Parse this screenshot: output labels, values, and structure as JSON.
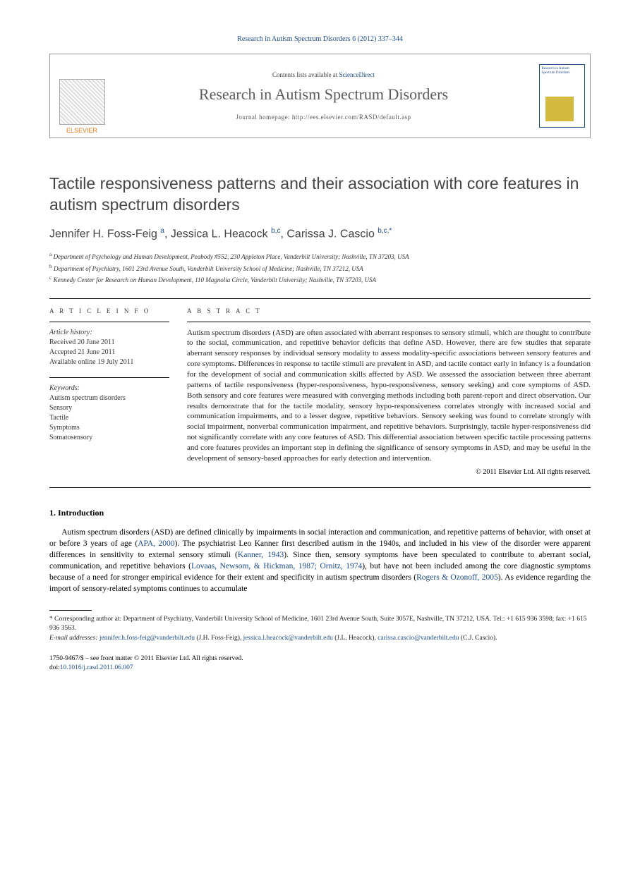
{
  "citation": "Research in Autism Spectrum Disorders 6 (2012) 337–344",
  "header": {
    "contents_prefix": "Contents lists available at ",
    "contents_link": "ScienceDirect",
    "journal": "Research in Autism Spectrum Disorders",
    "homepage_label": "Journal homepage: http://ees.elsevier.com/RASD/default.asp",
    "publisher": "ELSEVIER",
    "cover_title": "Research in Autism Spectrum Disorders"
  },
  "title": "Tactile responsiveness patterns and their association with core features in autism spectrum disorders",
  "authors_html": "Jennifer H. Foss-Feig <sup>a</sup>, Jessica L. Heacock <sup>b,c</sup>, Carissa J. Cascio <sup>b,c,*</sup>",
  "affiliations": [
    {
      "sup": "a",
      "text": "Department of Psychology and Human Development, Peabody #552, 230 Appleton Place, Vanderbilt University; Nashville, TN 37203, USA"
    },
    {
      "sup": "b",
      "text": "Department of Psychiatry, 1601 23rd Avenue South, Vanderbilt University School of Medicine; Nashville, TN 37212, USA"
    },
    {
      "sup": "c",
      "text": "Kennedy Center for Research on Human Development, 110 Magnolia Circle, Vanderbilt University; Nashville, TN 37203, USA"
    }
  ],
  "article_info": {
    "heading": "A R T I C L E   I N F O",
    "history_head": "Article history:",
    "received": "Received 20 June 2011",
    "accepted": "Accepted 21 June 2011",
    "online": "Available online 19 July 2011",
    "keywords_head": "Keywords:",
    "keywords": [
      "Autism spectrum disorders",
      "Sensory",
      "Tactile",
      "Symptoms",
      "Somatosensory"
    ]
  },
  "abstract": {
    "heading": "A B S T R A C T",
    "text": "Autism spectrum disorders (ASD) are often associated with aberrant responses to sensory stimuli, which are thought to contribute to the social, communication, and repetitive behavior deficits that define ASD. However, there are few studies that separate aberrant sensory responses by individual sensory modality to assess modality-specific associations between sensory features and core symptoms. Differences in response to tactile stimuli are prevalent in ASD, and tactile contact early in infancy is a foundation for the development of social and communication skills affected by ASD. We assessed the association between three aberrant patterns of tactile responsiveness (hyper-responsiveness, hypo-responsiveness, sensory seeking) and core symptoms of ASD. Both sensory and core features were measured with converging methods including both parent-report and direct observation. Our results demonstrate that for the tactile modality, sensory hypo-responsiveness correlates strongly with increased social and communication impairments, and to a lesser degree, repetitive behaviors. Sensory seeking was found to correlate strongly with social impairment, nonverbal communication impairment, and repetitive behaviors. Surprisingly, tactile hyper-responsiveness did not significantly correlate with any core features of ASD. This differential association between specific tactile processing patterns and core features provides an important step in defining the significance of sensory symptoms in ASD, and may be useful in the development of sensory-based approaches for early detection and intervention.",
    "copyright": "© 2011 Elsevier Ltd. All rights reserved."
  },
  "intro": {
    "heading": "1.  Introduction",
    "p1_a": "Autism spectrum disorders (ASD) are defined clinically by impairments in social interaction and communication, and repetitive patterns of behavior, with onset at or before 3 years of age (",
    "p1_link1": "APA, 2000",
    "p1_b": "). The psychiatrist Leo Kanner first described autism in the 1940s, and included in his view of the disorder were apparent differences in sensitivity to external sensory stimuli (",
    "p1_link2": "Kanner, 1943",
    "p1_c": "). Since then, sensory symptoms have been speculated to contribute to aberrant social, communication, and repetitive behaviors (",
    "p1_link3": "Lovaas, Newsom, & Hickman, 1987; Ornitz, 1974",
    "p1_d": "), but have not been included among the core diagnostic symptoms because of a need for stronger empirical evidence for their extent and specificity in autism spectrum disorders (",
    "p1_link4": "Rogers & Ozonoff, 2005",
    "p1_e": "). As evidence regarding the import of sensory-related symptoms continues to accumulate"
  },
  "footnotes": {
    "corr": "* Corresponding author at: Department of Psychiatry, Vanderbilt University School of Medicine, 1601 23rd Avenue South, Suite 3057E, Nashville, TN 37212, USA. Tel.: +1 615 936 3598; fax: +1 615 936 3563.",
    "email_label": "E-mail addresses: ",
    "emails": [
      {
        "addr": "jennifer.h.foss-feig@vanderbilt.edu",
        "who": " (J.H. Foss-Feig), "
      },
      {
        "addr": "jessica.l.heacock@vanderbilt.edu",
        "who": " (J.L. Heacock), "
      },
      {
        "addr": "carissa.cascio@vanderbilt.edu",
        "who": " (C.J. Cascio)."
      }
    ]
  },
  "footer": {
    "line1": "1750-9467/$ – see front matter © 2011 Elsevier Ltd. All rights reserved.",
    "doi_label": "doi:",
    "doi": "10.1016/j.rasd.2011.06.007"
  },
  "colors": {
    "link": "#1a4a8a",
    "orange": "#e67817",
    "gold": "#d4b93f"
  }
}
